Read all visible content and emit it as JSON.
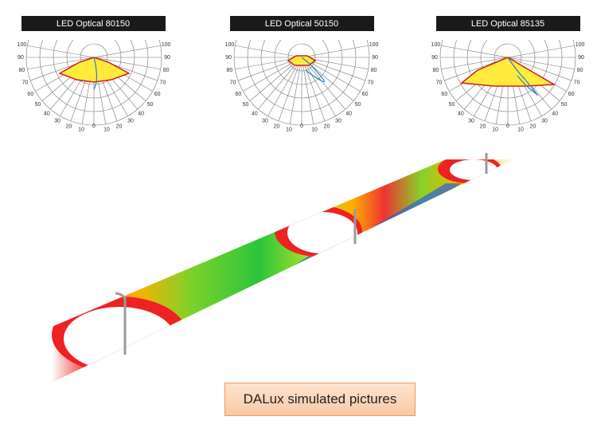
{
  "panels": [
    {
      "title": "LED Optical 80150"
    },
    {
      "title": "LED Optical 50150"
    },
    {
      "title": "LED Optical 85135"
    }
  ],
  "angle_labels": [
    100,
    90,
    80,
    70,
    60,
    50,
    40,
    30,
    20,
    10,
    0
  ],
  "caption": "DALux  simulated pictures"
}
